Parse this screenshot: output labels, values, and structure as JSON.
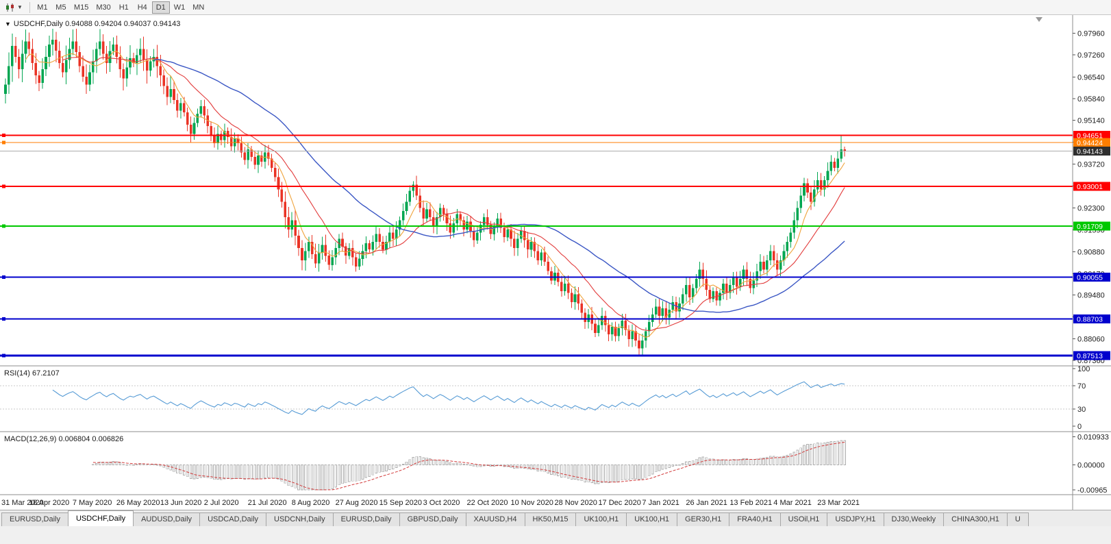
{
  "toolbar": {
    "chart_icon": "candlestick-chart-icon",
    "timeframes": [
      "M1",
      "M5",
      "M15",
      "M30",
      "H1",
      "H4",
      "D1",
      "W1",
      "MN"
    ],
    "active_timeframe": "D1"
  },
  "chart": {
    "symbol": "USDCHF,Daily",
    "ohlc": "0.94088 0.94204 0.94037 0.94143",
    "open": "0.94088",
    "high": "0.94204",
    "low": "0.94037",
    "close": "0.94143",
    "colors": {
      "up": "#00A651",
      "down": "#EA3325",
      "background": "#FFFFFF",
      "axis": "#8C8C8C"
    },
    "y_axis_ticks": [
      "0.97960",
      "0.97260",
      "0.96540",
      "0.95840",
      "0.95140",
      "0.94430",
      "0.93720",
      "0.93010",
      "0.92300",
      "0.91590",
      "0.90880",
      "0.90170",
      "0.89480",
      "0.88770",
      "0.88060",
      "0.87360"
    ],
    "x_axis_labels": [
      "31 Mar 2020",
      "18 Apr 2020",
      "7 May 2020",
      "26 May 2020",
      "13 Jun 2020",
      "2 Jul 2020",
      "21 Jul 2020",
      "8 Aug 2020",
      "27 Aug 2020",
      "15 Sep 2020",
      "3 Oct 2020",
      "22 Oct 2020",
      "10 Nov 2020",
      "28 Nov 2020",
      "17 Dec 2020",
      "7 Jan 2021",
      "26 Jan 2021",
      "13 Feb 2021",
      "4 Mar 2021",
      "23 Mar 2021"
    ],
    "levels": [
      {
        "price": 0.94651,
        "label": "0.94651",
        "color": "#FF0000",
        "width": 2
      },
      {
        "price": 0.94424,
        "label": "0.94424",
        "color": "#FF7E00",
        "width": 1
      },
      {
        "price": 0.93001,
        "label": "0.93001",
        "color": "#FF0000",
        "width": 2
      },
      {
        "price": 0.91709,
        "label": "0.91709",
        "color": "#00C800",
        "width": 2
      },
      {
        "price": 0.90055,
        "label": "0.90055",
        "color": "#0000CD",
        "width": 2
      },
      {
        "price": 0.88703,
        "label": "0.88703",
        "color": "#0000CD",
        "width": 2
      },
      {
        "price": 0.87513,
        "label": "0.87513",
        "color": "#0000CD",
        "width": 3
      }
    ],
    "bid": {
      "price": 0.94143,
      "label": "0.94143",
      "line_color": "#ABABAB",
      "badge_color": "#2E2E2E"
    },
    "chart_data": {
      "type": "candlestick",
      "symbol": "USDCHF",
      "timeframe": "Daily",
      "x_range": [
        "31 Mar 2020",
        "23 Mar 2021"
      ],
      "y_min": 0.8718,
      "y_max": 0.9855,
      "first_open": 0.96,
      "closes": [
        0.963,
        0.969,
        0.9755,
        0.972,
        0.968,
        0.973,
        0.977,
        0.9745,
        0.97,
        0.966,
        0.9635,
        0.968,
        0.972,
        0.976,
        0.9775,
        0.974,
        0.97,
        0.967,
        0.971,
        0.9745,
        0.977,
        0.9735,
        0.969,
        0.9655,
        0.963,
        0.967,
        0.9705,
        0.9745,
        0.977,
        0.973,
        0.97,
        0.9738,
        0.976,
        0.972,
        0.968,
        0.965,
        0.9685,
        0.9715,
        0.97,
        0.9725,
        0.9745,
        0.971,
        0.9675,
        0.9705,
        0.972,
        0.969,
        0.966,
        0.9625,
        0.959,
        0.9615,
        0.958,
        0.9545,
        0.957,
        0.954,
        0.95,
        0.947,
        0.9505,
        0.9535,
        0.956,
        0.953,
        0.9495,
        0.9465,
        0.944,
        0.947,
        0.945,
        0.948,
        0.946,
        0.943,
        0.9455,
        0.944,
        0.941,
        0.9385,
        0.942,
        0.9395,
        0.937,
        0.94,
        0.938,
        0.941,
        0.939,
        0.936,
        0.933,
        0.929,
        0.925,
        0.92,
        0.916,
        0.919,
        0.914,
        0.91,
        0.906,
        0.909,
        0.912,
        0.908,
        0.905,
        0.9085,
        0.911,
        0.9075,
        0.9045,
        0.907,
        0.91,
        0.913,
        0.9105,
        0.9075,
        0.91,
        0.907,
        0.904,
        0.9065,
        0.909,
        0.9115,
        0.9095,
        0.912,
        0.9145,
        0.912,
        0.9095,
        0.912,
        0.915,
        0.913,
        0.916,
        0.919,
        0.922,
        0.925,
        0.9285,
        0.9305,
        0.927,
        0.923,
        0.9195,
        0.9225,
        0.92,
        0.917,
        0.92,
        0.923,
        0.921,
        0.918,
        0.915,
        0.918,
        0.921,
        0.919,
        0.916,
        0.9185,
        0.9155,
        0.9125,
        0.915,
        0.9175,
        0.92,
        0.9175,
        0.9145,
        0.917,
        0.9195,
        0.9165,
        0.9135,
        0.916,
        0.913,
        0.91,
        0.913,
        0.9155,
        0.9125,
        0.9095,
        0.912,
        0.909,
        0.906,
        0.9085,
        0.9055,
        0.9025,
        0.8995,
        0.902,
        0.899,
        0.896,
        0.8985,
        0.8955,
        0.8925,
        0.895,
        0.892,
        0.889,
        0.886,
        0.8885,
        0.8855,
        0.8825,
        0.885,
        0.888,
        0.885,
        0.882,
        0.8845,
        0.8815,
        0.884,
        0.8865,
        0.8835,
        0.8805,
        0.883,
        0.88,
        0.8775,
        0.88,
        0.883,
        0.886,
        0.8885,
        0.891,
        0.888,
        0.8905,
        0.8875,
        0.89,
        0.8925,
        0.8895,
        0.892,
        0.895,
        0.898,
        0.894,
        0.897,
        0.9,
        0.903,
        0.9,
        0.8965,
        0.8935,
        0.896,
        0.893,
        0.8955,
        0.8985,
        0.8955,
        0.898,
        0.9005,
        0.8975,
        0.9,
        0.903,
        0.9,
        0.897,
        0.8995,
        0.9025,
        0.9055,
        0.903,
        0.906,
        0.909,
        0.906,
        0.903,
        0.906,
        0.909,
        0.912,
        0.915,
        0.919,
        0.923,
        0.927,
        0.931,
        0.928,
        0.925,
        0.929,
        0.932,
        0.929,
        0.932,
        0.935,
        0.938,
        0.936,
        0.939,
        0.942,
        0.94143
      ],
      "wick_overrides": [
        {
          "i": 188,
          "low": 0.8751
        },
        {
          "i": 248,
          "high": 0.9464
        }
      ],
      "ma": [
        {
          "period": 7,
          "color": "#EFA33B"
        },
        {
          "period": 18,
          "color": "#E23B3B"
        },
        {
          "period": 45,
          "color": "#3A56C4"
        }
      ]
    }
  },
  "rsi": {
    "label": "RSI(14) 67.2107",
    "value": "67.2107",
    "period": 14,
    "ticks": [
      "100",
      "70",
      "30",
      "0"
    ],
    "levels": [
      70,
      30
    ],
    "color": "#569BD5"
  },
  "macd": {
    "label": "MACD(12,26,9) 0.006804 0.006826",
    "main": "0.006804",
    "signal": "0.006826",
    "ticks": [
      "0.010933",
      "0.00000",
      "-0.00965"
    ],
    "histogram_color": "#B0B0B0",
    "signal_color": "#D23B3B"
  },
  "tabs": {
    "items": [
      {
        "label": "EURUSD,Daily",
        "active": false
      },
      {
        "label": "USDCHF,Daily",
        "active": true
      },
      {
        "label": "AUDUSD,Daily",
        "active": false
      },
      {
        "label": "USDCAD,Daily",
        "active": false
      },
      {
        "label": "USDCNH,Daily",
        "active": false
      },
      {
        "label": "EURUSD,Daily",
        "active": false
      },
      {
        "label": "GBPUSD,Daily",
        "active": false
      },
      {
        "label": "XAUUSD,H4",
        "active": false
      },
      {
        "label": "HK50,M15",
        "active": false
      },
      {
        "label": "UK100,H1",
        "active": false
      },
      {
        "label": "UK100,H1",
        "active": false
      },
      {
        "label": "GER30,H1",
        "active": false
      },
      {
        "label": "FRA40,H1",
        "active": false
      },
      {
        "label": "USOil,H1",
        "active": false
      },
      {
        "label": "USDJPY,H1",
        "active": false
      },
      {
        "label": "DJ30,Weekly",
        "active": false
      },
      {
        "label": "CHINA300,H1",
        "active": false
      },
      {
        "label": "U",
        "active": false
      }
    ]
  }
}
